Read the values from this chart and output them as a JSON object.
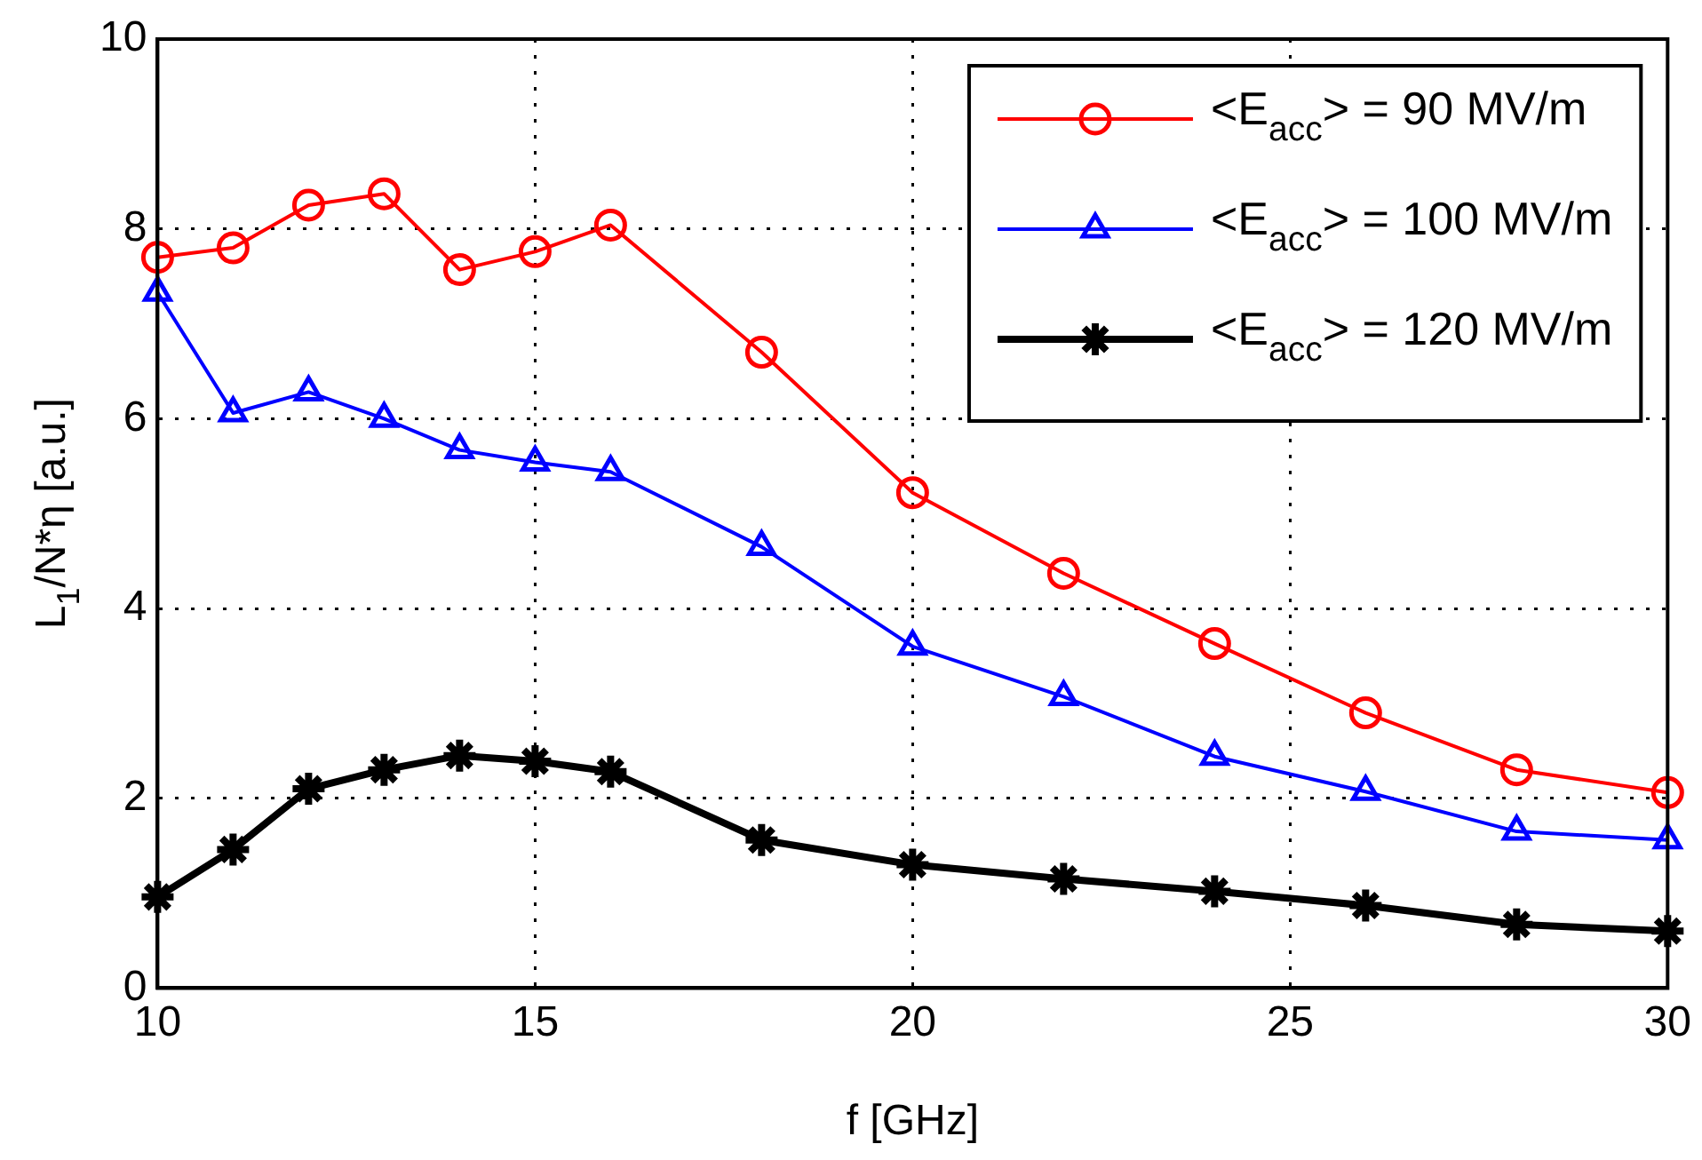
{
  "chart_data": {
    "type": "line",
    "xlabel": "f [GHz]",
    "ylabel": "L$_{1}$/N*η [a.u.]",
    "x": [
      10,
      11,
      12,
      13,
      14,
      15,
      16,
      18,
      20,
      22,
      24,
      26,
      28,
      30
    ],
    "xlim": [
      10,
      30
    ],
    "xticks": [
      10,
      15,
      20,
      25,
      30
    ],
    "ylim": [
      0,
      10
    ],
    "yticks": [
      0,
      2,
      4,
      6,
      8,
      10
    ],
    "grid": true,
    "legend": "top right",
    "line_style": "solid",
    "series": [
      {
        "name": "<E$_{acc}$> = 90 MV/m",
        "color": "#ff0000",
        "marker": "circle",
        "values": [
          7.7,
          7.8,
          8.25,
          8.37,
          7.57,
          7.76,
          8.04,
          6.7,
          5.22,
          4.37,
          3.63,
          2.9,
          2.3,
          2.06
        ]
      },
      {
        "name": "<E$_{acc}$> = 100 MV/m",
        "color": "#0000ff",
        "marker": "triangle",
        "values": [
          7.33,
          6.06,
          6.28,
          6.0,
          5.67,
          5.54,
          5.44,
          4.65,
          3.6,
          3.07,
          2.44,
          2.07,
          1.65,
          1.56
        ]
      },
      {
        "name": "<E$_{acc}$> = 120 MV/m",
        "color": "#000000",
        "marker": "cross",
        "values": [
          0.96,
          1.46,
          2.1,
          2.3,
          2.45,
          2.39,
          2.28,
          1.56,
          1.3,
          1.15,
          1.02,
          0.87,
          0.67,
          0.6
        ]
      }
    ]
  }
}
